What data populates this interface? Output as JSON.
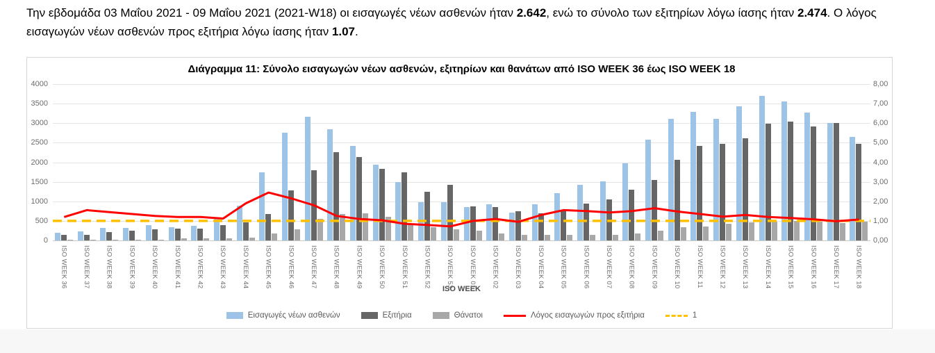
{
  "intro": {
    "part1": "Την εβδομάδα 03 Μαΐου 2021 - 09 Μαΐου 2021 (2021-W18) οι εισαγωγές νέων ασθενών ήταν ",
    "admissions_value": "2.642",
    "part2": ", ενώ το σύνολο των εξιτηρίων λόγω ίασης ήταν ",
    "discharges_value": "2.474",
    "part3": ". Ο λόγος εισαγωγών νέων ασθενών προς εξιτήρια λόγω ίασης ήταν ",
    "ratio_value": "1.07",
    "part4": "."
  },
  "chart_data": {
    "type": "bar",
    "title": "Διάγραμμα 11: Σύνολο εισαγωγών νέων ασθενών, εξιτηρίων και θανάτων από ISO WEEK 36 έως ISO WEEK 18",
    "xlabel": "ISO WEEK",
    "categories": [
      "ISO WEEK 36",
      "ISO WEEK 37",
      "ISO WEEK 38",
      "ISO WEEK 39",
      "ISO WEEK 40",
      "ISO WEEK 41",
      "ISO WEEK 42",
      "ISO WEEK 43",
      "ISO WEEK 44",
      "ISO WEEK 45",
      "ISO WEEK 46",
      "ISO WEEK 47",
      "ISO WEEK 48",
      "ISO WEEK 49",
      "ISO WEEK 50",
      "ISO WEEK 51",
      "ISO WEEK 52",
      "ISO WEEK 53",
      "ISO WEEK 01",
      "ISO WEEK 02",
      "ISO WEEK 03",
      "ISO WEEK 04",
      "ISO WEEK 05",
      "ISO WEEK 06",
      "ISO WEEK 07",
      "ISO WEEK 08",
      "ISO WEEK 09",
      "ISO WEEK 10",
      "ISO WEEK 11",
      "ISO WEEK 12",
      "ISO WEEK 13",
      "ISO WEEK 14",
      "ISO WEEK 15",
      "ISO WEEK 16",
      "ISO WEEK 17",
      "ISO WEEK 18"
    ],
    "left_axis": {
      "min": 0,
      "max": 4000,
      "step": 500,
      "ticks": [
        "0",
        "500",
        "1000",
        "1500",
        "2000",
        "2500",
        "3000",
        "3500",
        "4000"
      ]
    },
    "right_axis": {
      "min": 0,
      "max": 8,
      "step": 1,
      "ticks": [
        "0,00",
        "1,00",
        "2,00",
        "3,00",
        "4,00",
        "5,00",
        "6,00",
        "7,00",
        "8,00"
      ]
    },
    "grid": "horizontal",
    "legend_position": "bottom",
    "series": [
      {
        "name": "Εισαγωγές νέων ασθενών",
        "type": "bar",
        "axis": "left",
        "color": "#9dc3e6",
        "values": [
          200,
          240,
          320,
          315,
          385,
          340,
          375,
          565,
          890,
          1750,
          2760,
          3170,
          2850,
          2410,
          1930,
          1500,
          980,
          980,
          850,
          920,
          710,
          920,
          1210,
          1430,
          1510,
          1970,
          2570,
          3110,
          3290,
          3110,
          3440,
          3690,
          3560,
          3280,
          3000,
          2642
        ]
      },
      {
        "name": "Εξιτήρια",
        "type": "bar",
        "axis": "left",
        "color": "#666666",
        "values": [
          150,
          150,
          210,
          255,
          280,
          300,
          300,
          400,
          460,
          670,
          1285,
          1790,
          2250,
          2130,
          1840,
          1740,
          1245,
          1420,
          870,
          850,
          750,
          690,
          750,
          950,
          1055,
          1290,
          1550,
          2060,
          2410,
          2480,
          2610,
          2990,
          3040,
          2920,
          3000,
          2474
        ]
      },
      {
        "name": "Θάνατοι",
        "type": "bar",
        "axis": "left",
        "color": "#a8a8a8",
        "values": [
          20,
          15,
          20,
          20,
          25,
          55,
          60,
          60,
          80,
          180,
          280,
          560,
          680,
          690,
          610,
          420,
          340,
          280,
          255,
          180,
          150,
          140,
          140,
          140,
          150,
          180,
          250,
          330,
          355,
          430,
          455,
          475,
          490,
          475,
          445,
          475
        ]
      },
      {
        "name": "Λόγος εισαγωγών προς εξιτήρια",
        "type": "line",
        "axis": "right",
        "color": "#ff0000",
        "values": [
          1.2,
          1.55,
          1.45,
          1.35,
          1.25,
          1.2,
          1.2,
          1.12,
          1.9,
          2.45,
          2.15,
          1.8,
          1.25,
          1.1,
          1.03,
          0.85,
          0.79,
          0.72,
          1.0,
          1.1,
          0.95,
          1.3,
          1.55,
          1.5,
          1.43,
          1.5,
          1.65,
          1.48,
          1.35,
          1.22,
          1.3,
          1.2,
          1.15,
          1.08,
          0.98,
          1.07
        ]
      },
      {
        "name": "1",
        "type": "dashed-line",
        "axis": "right",
        "color": "#ffc000",
        "constant": 1
      }
    ]
  }
}
